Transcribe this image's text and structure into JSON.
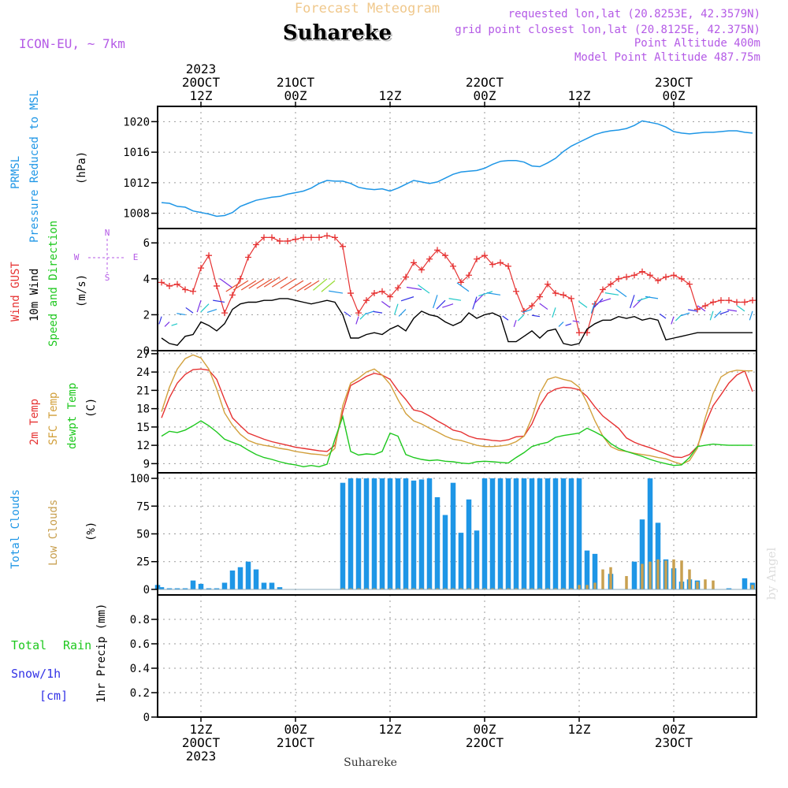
{
  "header": {
    "subtitle": "Forecast Meteogram",
    "location": "Suhareke",
    "model": "ICON-EU, ~ 7km",
    "requested": "requested lon,lat (20.8253E, 42.3579N)",
    "gridpoint": "grid point closest lon,lat (20.8125E, 42.375N)",
    "point_alt": "Point Altitude 400m",
    "model_alt": "Model Point Altitude 487.75m",
    "footer": "Suhareke",
    "credit": "by Angel"
  },
  "colors": {
    "pressure": "#1e96e6",
    "gust": "#e63232",
    "wind": "#000000",
    "wind_arrows": "#32c832",
    "temp2m": "#e63232",
    "sfctemp": "#d2a03c",
    "dewpt": "#1ec81e",
    "total_clouds": "#1e96e6",
    "low_clouds": "#c8a050",
    "rain": "#1ec81e",
    "snow": "#3232e6",
    "label_purple": "#b45ae6",
    "grid": "#9a9a9a"
  },
  "time_axis": {
    "top_ticks": [
      {
        "t": 12,
        "lines": [
          "2023",
          "20OCT",
          "12Z"
        ]
      },
      {
        "t": 24,
        "lines": [
          "21OCT",
          "00Z"
        ]
      },
      {
        "t": 36,
        "lines": [
          "12Z"
        ]
      },
      {
        "t": 48,
        "lines": [
          "22OCT",
          "00Z"
        ]
      },
      {
        "t": 60,
        "lines": [
          "12Z"
        ]
      },
      {
        "t": 72,
        "lines": [
          "23OCT",
          "00Z"
        ]
      }
    ],
    "bottom_ticks": [
      {
        "t": 12,
        "lines": [
          "12Z",
          "20OCT",
          "2023"
        ]
      },
      {
        "t": 24,
        "lines": [
          "00Z",
          "21OCT"
        ]
      },
      {
        "t": 36,
        "lines": [
          "12Z"
        ]
      },
      {
        "t": 48,
        "lines": [
          "00Z",
          "22OCT"
        ]
      },
      {
        "t": 60,
        "lines": [
          "12Z"
        ]
      },
      {
        "t": 72,
        "lines": [
          "00Z",
          "23OCT"
        ]
      }
    ],
    "t_range": [
      6.5,
      82.5
    ]
  },
  "panel_labels": {
    "pressure": {
      "a": "PRMSL",
      "b": "Pressure Reduced to MSL",
      "unit": "(hPa)"
    },
    "wind": {
      "gust": "Wind GUST",
      "wind10": "10m Wind",
      "dir": "Speed and Direction",
      "unit": "(m/s)",
      "compass": {
        "n": "N",
        "s": "S",
        "w": "W",
        "e": "E"
      }
    },
    "temp": {
      "t2m": "2m Temp",
      "sfc": "SFC Temp",
      "dew": "dewpt Temp",
      "unit": "(C)"
    },
    "clouds": {
      "total": "Total Clouds",
      "low": "Low Clouds",
      "unit": "(%)"
    },
    "precip": {
      "rain_a": "Total",
      "rain_b": "Rain",
      "snow": "Snow/1h",
      "snow_unit": "[cm]",
      "axis": "1hr Precip (mm)"
    }
  },
  "chart_data": [
    {
      "id": "pressure",
      "type": "line",
      "ylabel": "(hPa)",
      "ylim": [
        1006,
        1022
      ],
      "yticks": [
        1008,
        1012,
        1016,
        1020
      ],
      "x": [
        7,
        8,
        9,
        10,
        11,
        12,
        13,
        14,
        15,
        16,
        17,
        18,
        19,
        20,
        21,
        22,
        23,
        24,
        25,
        26,
        27,
        28,
        29,
        30,
        31,
        32,
        33,
        34,
        35,
        36,
        37,
        38,
        39,
        40,
        41,
        42,
        43,
        44,
        45,
        46,
        47,
        48,
        49,
        50,
        51,
        52,
        53,
        54,
        55,
        56,
        57,
        58,
        59,
        60,
        61,
        62,
        63,
        64,
        65,
        66,
        67,
        68,
        69,
        70,
        71,
        72,
        73,
        74,
        75,
        76,
        77,
        78,
        79,
        80,
        81,
        82
      ],
      "series": [
        {
          "values": [
            1009.4,
            1009.3,
            1008.9,
            1008.8,
            1008.3,
            1008.1,
            1007.9,
            1007.6,
            1007.7,
            1008.1,
            1008.9,
            1009.3,
            1009.7,
            1009.9,
            1010.1,
            1010.2,
            1010.5,
            1010.7,
            1010.9,
            1011.3,
            1011.9,
            1012.3,
            1012.2,
            1012.2,
            1011.9,
            1011.4,
            1011.2,
            1011.1,
            1011.2,
            1010.9,
            1011.3,
            1011.8,
            1012.3,
            1012.1,
            1011.9,
            1012.1,
            1012.6,
            1013.1,
            1013.4,
            1013.5,
            1013.6,
            1013.9,
            1014.4,
            1014.8,
            1014.9,
            1014.9,
            1014.7,
            1014.2,
            1014.1,
            1014.6,
            1015.2,
            1016.1,
            1016.8,
            1017.3,
            1017.8,
            1018.3,
            1018.6,
            1018.8,
            1018.9,
            1019.1,
            1019.5,
            1020.1,
            1019.9,
            1019.7,
            1019.3,
            1018.7,
            1018.5,
            1018.4,
            1018.5,
            1018.6,
            1018.6,
            1018.7,
            1018.8,
            1018.8,
            1018.6,
            1018.5
          ]
        }
      ]
    },
    {
      "id": "wind",
      "type": "line",
      "ylabel": "(m/s)",
      "ylim": [
        0,
        6.8
      ],
      "yticks": [
        0,
        2,
        4,
        6
      ],
      "x": [
        7,
        8,
        9,
        10,
        11,
        12,
        13,
        14,
        15,
        16,
        17,
        18,
        19,
        20,
        21,
        22,
        23,
        24,
        25,
        26,
        27,
        28,
        29,
        30,
        31,
        32,
        33,
        34,
        35,
        36,
        37,
        38,
        39,
        40,
        41,
        42,
        43,
        44,
        45,
        46,
        47,
        48,
        49,
        50,
        51,
        52,
        53,
        54,
        55,
        56,
        57,
        58,
        59,
        60,
        61,
        62,
        63,
        64,
        65,
        66,
        67,
        68,
        69,
        70,
        71,
        72,
        73,
        74,
        75,
        76,
        77,
        78,
        79,
        80,
        81,
        82
      ],
      "series": [
        {
          "name": "Wind GUST",
          "values": [
            3.8,
            3.6,
            3.7,
            3.4,
            3.3,
            4.6,
            5.3,
            3.6,
            2.1,
            3.1,
            4.0,
            5.2,
            5.9,
            6.3,
            6.3,
            6.1,
            6.1,
            6.2,
            6.3,
            6.3,
            6.3,
            6.4,
            6.3,
            5.8,
            3.2,
            2.1,
            2.8,
            3.2,
            3.3,
            3.0,
            3.5,
            4.1,
            4.9,
            4.5,
            5.1,
            5.6,
            5.3,
            4.7,
            3.8,
            4.2,
            5.1,
            5.3,
            4.8,
            4.9,
            4.7,
            3.3,
            2.2,
            2.5,
            3.0,
            3.7,
            3.2,
            3.1,
            2.9,
            1.0,
            1.0,
            2.6,
            3.4,
            3.7,
            4.0,
            4.1,
            4.2,
            4.4,
            4.2,
            3.9,
            4.1,
            4.2,
            4.0,
            3.7,
            2.3,
            2.5,
            2.7,
            2.8,
            2.8,
            2.7,
            2.7,
            2.8
          ]
        },
        {
          "name": "10m Wind",
          "values": [
            0.7,
            0.4,
            0.3,
            0.8,
            0.9,
            1.6,
            1.4,
            1.1,
            1.5,
            2.3,
            2.6,
            2.7,
            2.7,
            2.8,
            2.8,
            2.9,
            2.9,
            2.8,
            2.7,
            2.6,
            2.7,
            2.8,
            2.7,
            2.0,
            0.7,
            0.7,
            0.9,
            1.0,
            0.9,
            1.2,
            1.4,
            1.1,
            1.8,
            2.2,
            2.0,
            1.9,
            1.6,
            1.4,
            1.6,
            2.1,
            1.8,
            2.0,
            2.1,
            1.9,
            0.5,
            0.5,
            0.8,
            1.1,
            0.7,
            1.1,
            1.2,
            0.4,
            0.3,
            0.4,
            1.2,
            1.5,
            1.7,
            1.7,
            1.9,
            1.8,
            1.9,
            1.7,
            1.8,
            1.7,
            0.6,
            0.7,
            0.8,
            0.9,
            1.0,
            1.0,
            1.0,
            1.0,
            1.0,
            1.0,
            1.0,
            1.0
          ]
        }
      ]
    },
    {
      "id": "temp",
      "type": "line",
      "ylabel": "(C)",
      "ylim": [
        7.5,
        27.5
      ],
      "yticks": [
        9,
        12,
        15,
        18,
        21,
        24,
        27
      ],
      "x": [
        7,
        8,
        9,
        10,
        11,
        12,
        13,
        14,
        15,
        16,
        17,
        18,
        19,
        20,
        21,
        22,
        23,
        24,
        25,
        26,
        27,
        28,
        29,
        30,
        31,
        32,
        33,
        34,
        35,
        36,
        37,
        38,
        39,
        40,
        41,
        42,
        43,
        44,
        45,
        46,
        47,
        48,
        49,
        50,
        51,
        52,
        53,
        54,
        55,
        56,
        57,
        58,
        59,
        60,
        61,
        62,
        63,
        64,
        65,
        66,
        67,
        68,
        69,
        70,
        71,
        72,
        73,
        74,
        75,
        76,
        77,
        78,
        79,
        80,
        81,
        82
      ],
      "series": [
        {
          "name": "2m Temp",
          "values": [
            16.5,
            19.8,
            22.2,
            23.6,
            24.4,
            24.5,
            24.3,
            22.8,
            19.5,
            16.5,
            15.2,
            14.0,
            13.5,
            13.0,
            12.6,
            12.3,
            12.0,
            11.7,
            11.5,
            11.3,
            11.1,
            11.0,
            12.0,
            17.5,
            21.8,
            22.5,
            23.3,
            23.8,
            23.5,
            22.8,
            21.0,
            19.5,
            17.8,
            17.5,
            16.8,
            16.0,
            15.3,
            14.5,
            14.2,
            13.5,
            13.1,
            13.0,
            12.8,
            12.7,
            12.9,
            13.4,
            13.5,
            15.5,
            18.5,
            20.5,
            21.2,
            21.5,
            21.4,
            21.1,
            20.0,
            18.3,
            16.8,
            15.8,
            14.8,
            13.2,
            12.5,
            12.0,
            11.6,
            11.1,
            10.6,
            10.1,
            10.0,
            10.5,
            11.8,
            15.5,
            18.5,
            20.3,
            22.2,
            23.5,
            24.2,
            20.8
          ]
        },
        {
          "name": "SFC Temp",
          "values": [
            17.5,
            21.5,
            24.5,
            26.2,
            26.8,
            26.3,
            24.5,
            21.2,
            17.3,
            15.3,
            13.8,
            12.8,
            12.3,
            12.0,
            11.8,
            11.5,
            11.3,
            11.0,
            10.8,
            10.6,
            10.5,
            10.3,
            11.5,
            18.5,
            22.2,
            23.0,
            24.0,
            24.5,
            23.5,
            22.0,
            19.5,
            17.2,
            16.0,
            15.5,
            14.8,
            14.2,
            13.5,
            13.0,
            12.8,
            12.4,
            12.0,
            11.8,
            11.8,
            11.9,
            12.1,
            12.6,
            13.5,
            16.5,
            20.5,
            22.8,
            23.2,
            22.8,
            22.5,
            21.5,
            19.0,
            16.0,
            13.5,
            11.8,
            11.2,
            11.0,
            10.7,
            10.5,
            10.3,
            10.0,
            9.8,
            9.3,
            8.9,
            9.5,
            11.5,
            16.5,
            20.5,
            23.2,
            24.0,
            24.3,
            24.2,
            24.2
          ]
        },
        {
          "name": "dewpt Temp",
          "values": [
            13.5,
            14.3,
            14.1,
            14.5,
            15.2,
            16.0,
            15.2,
            14.2,
            13.0,
            12.5,
            12.0,
            11.2,
            10.5,
            10.0,
            9.7,
            9.3,
            9.0,
            8.8,
            8.5,
            8.7,
            8.5,
            8.9,
            13.0,
            16.7,
            11.0,
            10.4,
            10.6,
            10.5,
            11.0,
            14.0,
            13.5,
            10.5,
            10.0,
            9.7,
            9.5,
            9.6,
            9.4,
            9.3,
            9.1,
            9.0,
            9.3,
            9.4,
            9.3,
            9.2,
            9.1,
            10.0,
            10.8,
            11.8,
            12.2,
            12.5,
            13.3,
            13.6,
            13.8,
            14.0,
            14.8,
            14.2,
            13.5,
            12.3,
            11.5,
            11.0,
            10.6,
            10.2,
            9.7,
            9.3,
            9.0,
            8.7,
            8.8,
            10.0,
            11.8,
            12.0,
            12.2,
            12.1,
            12.0,
            12.0,
            12.0,
            12.0
          ]
        }
      ]
    },
    {
      "id": "clouds",
      "type": "bar",
      "ylabel": "(%)",
      "ylim": [
        -5,
        105
      ],
      "yticks": [
        0,
        25,
        50,
        75,
        100
      ],
      "x": [
        6.5,
        7,
        8,
        9,
        10,
        11,
        12,
        13,
        14,
        15,
        16,
        17,
        18,
        19,
        20,
        21,
        22,
        23,
        24,
        25,
        26,
        27,
        28,
        29,
        30,
        31,
        32,
        33,
        34,
        35,
        36,
        37,
        38,
        39,
        40,
        41,
        42,
        43,
        44,
        45,
        46,
        47,
        48,
        49,
        50,
        51,
        52,
        53,
        54,
        55,
        56,
        57,
        58,
        59,
        60,
        61,
        62,
        63,
        64,
        65,
        66,
        67,
        68,
        69,
        70,
        71,
        72,
        73,
        74,
        75,
        76,
        77,
        78,
        79,
        80,
        81,
        82
      ],
      "series": [
        {
          "name": "Total Clouds",
          "values": [
            4,
            2,
            1,
            1,
            1,
            8,
            5,
            1,
            1,
            6,
            17,
            20,
            25,
            18,
            6,
            6,
            2,
            0,
            0,
            0,
            0,
            0,
            0,
            0,
            96,
            100,
            100,
            100,
            100,
            100,
            100,
            100,
            100,
            98,
            99,
            100,
            83,
            67,
            96,
            51,
            81,
            53,
            100,
            100,
            100,
            100,
            100,
            100,
            100,
            100,
            100,
            100,
            100,
            100,
            100,
            35,
            32,
            0,
            14,
            0,
            0,
            25,
            63,
            100,
            60,
            27,
            19,
            7,
            9,
            8,
            0,
            0,
            0,
            1,
            0,
            10,
            6
          ]
        },
        {
          "name": "Low Clouds",
          "values": [
            0,
            0,
            0,
            0,
            0,
            0,
            0,
            0,
            0,
            0,
            0,
            0,
            0,
            0,
            0,
            0,
            0,
            0,
            0,
            0,
            0,
            0,
            0,
            0,
            1,
            1,
            1,
            1,
            1,
            1,
            1,
            1,
            1,
            1,
            1,
            1,
            1,
            1,
            1,
            1,
            1,
            1,
            1,
            1,
            1,
            1,
            1,
            1,
            1,
            1,
            1,
            1,
            1,
            1,
            4,
            4,
            6,
            18,
            20,
            0,
            12,
            0,
            23,
            25,
            27,
            26,
            27,
            26,
            18,
            7,
            9,
            8,
            0,
            0,
            0,
            0,
            4
          ]
        }
      ]
    },
    {
      "id": "precip",
      "type": "bar",
      "ylabel": "1hr Precip (mm)",
      "ylim": [
        0,
        1
      ],
      "yticks": [
        0,
        0.2,
        0.4,
        0.6,
        0.8
      ],
      "series": [
        {
          "name": "Total Rain",
          "values": []
        }
      ]
    }
  ]
}
